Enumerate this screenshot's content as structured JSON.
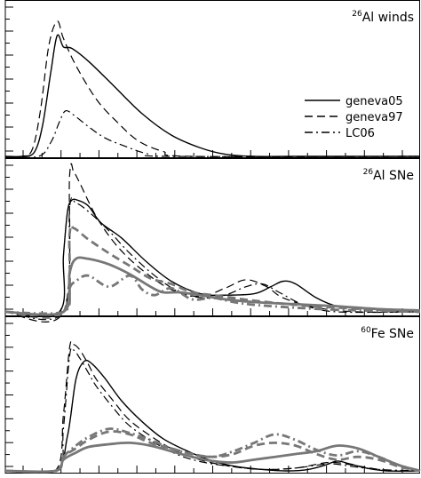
{
  "chart_data": [
    {
      "type": "line",
      "panel_label": {
        "superscript": "26",
        "text": "Al winds"
      },
      "legend": {
        "placement": "middle-right",
        "entries": [
          {
            "name": "geneva05",
            "dash": "solid"
          },
          {
            "name": "geneva97",
            "dash": "dashed"
          },
          {
            "name": "LC06",
            "dash": "dashdot"
          }
        ]
      },
      "xlim": [
        0,
        1
      ],
      "ylim": [
        0,
        1
      ],
      "grid": false,
      "series": [
        {
          "name": "geneva05",
          "color": "#000000",
          "width": 1.4,
          "dash": "solid",
          "x": [
            0.0,
            0.04,
            0.07,
            0.09,
            0.11,
            0.125,
            0.14,
            0.16,
            0.2,
            0.26,
            0.33,
            0.4,
            0.47,
            0.53,
            0.6,
            0.7,
            0.85,
            1.0
          ],
          "y": [
            0.0,
            0.0,
            0.03,
            0.22,
            0.6,
            0.85,
            0.77,
            0.76,
            0.67,
            0.5,
            0.3,
            0.15,
            0.06,
            0.015,
            0.0,
            0.0,
            0.0,
            0.0
          ]
        },
        {
          "name": "geneva97",
          "color": "#000000",
          "width": 1.2,
          "dash": "dashed",
          "x": [
            0.0,
            0.04,
            0.065,
            0.085,
            0.105,
            0.125,
            0.14,
            0.17,
            0.22,
            0.27,
            0.32,
            0.38,
            0.45,
            1.0
          ],
          "y": [
            0.0,
            0.0,
            0.05,
            0.33,
            0.78,
            0.95,
            0.83,
            0.64,
            0.4,
            0.24,
            0.11,
            0.035,
            0.0,
            0.0
          ]
        },
        {
          "name": "LC06",
          "color": "#000000",
          "width": 1.2,
          "dash": "dashdot",
          "x": [
            0.0,
            0.08,
            0.11,
            0.13,
            0.145,
            0.165,
            0.2,
            0.24,
            0.29,
            0.34,
            0.4,
            1.0
          ],
          "y": [
            0.0,
            0.0,
            0.1,
            0.24,
            0.32,
            0.29,
            0.21,
            0.13,
            0.07,
            0.02,
            0.0,
            0.0
          ]
        }
      ]
    },
    {
      "type": "line",
      "panel_label": {
        "superscript": "26",
        "text": "Al SNe"
      },
      "xlim": [
        0,
        1
      ],
      "ylim": [
        0,
        1
      ],
      "grid": false,
      "series": [
        {
          "name": "geneva05",
          "color": "#000000",
          "width": 1.4,
          "dash": "solid",
          "x": [
            0.0,
            0.13,
            0.14,
            0.15,
            0.16,
            0.175,
            0.2,
            0.23,
            0.28,
            0.34,
            0.4,
            0.47,
            0.53,
            0.6,
            0.64,
            0.67,
            0.7,
            0.75,
            0.8,
            0.85,
            0.9,
            1.0
          ],
          "y": [
            0.0,
            0.0,
            0.4,
            0.72,
            0.8,
            0.8,
            0.76,
            0.64,
            0.53,
            0.36,
            0.22,
            0.13,
            0.12,
            0.13,
            0.18,
            0.22,
            0.2,
            0.1,
            0.04,
            0.03,
            0.015,
            0.0
          ]
        },
        {
          "name": "geneva97",
          "color": "#000000",
          "width": 1.2,
          "dash": "dashed",
          "x": [
            0.0,
            0.14,
            0.155,
            0.165,
            0.18,
            0.22,
            0.27,
            0.33,
            0.4,
            0.47,
            0.53,
            0.58,
            0.63,
            0.67,
            0.75,
            0.85,
            1.0
          ],
          "y": [
            0.0,
            0.0,
            0.98,
            1.0,
            0.92,
            0.68,
            0.47,
            0.3,
            0.16,
            0.11,
            0.17,
            0.23,
            0.18,
            0.1,
            0.03,
            0.0,
            0.0
          ]
        },
        {
          "name": "LC06",
          "color": "#000000",
          "width": 1.2,
          "dash": "dashdot",
          "x": [
            0.0,
            0.14,
            0.155,
            0.17,
            0.2,
            0.25,
            0.3,
            0.36,
            0.42,
            0.48,
            0.53,
            0.58,
            0.62,
            0.66,
            0.72,
            0.8,
            1.0
          ],
          "y": [
            0.0,
            0.0,
            0.75,
            0.78,
            0.72,
            0.58,
            0.42,
            0.26,
            0.14,
            0.1,
            0.12,
            0.18,
            0.2,
            0.14,
            0.05,
            0.0,
            0.0
          ]
        },
        {
          "name": "geneva05",
          "color": "#777777",
          "width": 2.8,
          "dash": "solid",
          "x": [
            0.0,
            0.14,
            0.155,
            0.17,
            0.2,
            0.25,
            0.3,
            0.35,
            0.38,
            0.42,
            0.47,
            0.53,
            0.6,
            0.7,
            0.8,
            0.9,
            1.0
          ],
          "y": [
            0.0,
            0.0,
            0.28,
            0.38,
            0.38,
            0.34,
            0.27,
            0.18,
            0.14,
            0.14,
            0.12,
            0.09,
            0.07,
            0.055,
            0.04,
            0.02,
            0.01
          ]
        },
        {
          "name": "geneva97",
          "color": "#777777",
          "width": 2.8,
          "dash": "dashed",
          "x": [
            0.0,
            0.14,
            0.155,
            0.165,
            0.2,
            0.25,
            0.3,
            0.35,
            0.4,
            0.45,
            0.5,
            0.55,
            0.6,
            0.7,
            0.8,
            0.9,
            1.0
          ],
          "y": [
            0.0,
            0.0,
            0.56,
            0.6,
            0.52,
            0.42,
            0.33,
            0.24,
            0.2,
            0.14,
            0.12,
            0.1,
            0.08,
            0.05,
            0.03,
            0.015,
            0.0
          ]
        },
        {
          "name": "LC06",
          "color": "#777777",
          "width": 2.8,
          "dash": "dashdot",
          "x": [
            0.0,
            0.14,
            0.155,
            0.17,
            0.2,
            0.25,
            0.3,
            0.33,
            0.36,
            0.4,
            0.45,
            0.5,
            0.55,
            0.6,
            0.7,
            0.8,
            1.0
          ],
          "y": [
            0.0,
            0.0,
            0.17,
            0.22,
            0.26,
            0.18,
            0.26,
            0.16,
            0.12,
            0.17,
            0.09,
            0.1,
            0.07,
            0.05,
            0.03,
            0.015,
            0.0
          ]
        }
      ]
    },
    {
      "type": "line",
      "panel_label": {
        "superscript": "60",
        "text": "Fe SNe"
      },
      "xlim": [
        0,
        1
      ],
      "ylim": [
        0,
        1
      ],
      "grid": false,
      "series": [
        {
          "name": "geneva05",
          "color": "#000000",
          "width": 1.4,
          "dash": "solid",
          "x": [
            0.0,
            0.12,
            0.15,
            0.17,
            0.19,
            0.21,
            0.24,
            0.28,
            0.33,
            0.38,
            0.44,
            0.5,
            0.56,
            0.62,
            0.68,
            0.73,
            0.77,
            0.8,
            0.83,
            0.87,
            0.92,
            1.0
          ],
          "y": [
            0.0,
            0.0,
            0.25,
            0.65,
            0.78,
            0.76,
            0.66,
            0.5,
            0.35,
            0.23,
            0.14,
            0.07,
            0.03,
            0.01,
            0.0,
            0.01,
            0.04,
            0.07,
            0.05,
            0.02,
            0.0,
            0.0
          ]
        },
        {
          "name": "geneva97",
          "color": "#000000",
          "width": 1.2,
          "dash": "dashed",
          "x": [
            0.0,
            0.12,
            0.14,
            0.155,
            0.165,
            0.18,
            0.2,
            0.22,
            0.26,
            0.3,
            0.36,
            0.42,
            0.48,
            0.55,
            0.62,
            0.7,
            0.78,
            0.84,
            0.88,
            0.93,
            1.0
          ],
          "y": [
            0.0,
            0.0,
            0.4,
            0.88,
            0.9,
            0.86,
            0.76,
            0.65,
            0.5,
            0.36,
            0.23,
            0.13,
            0.07,
            0.03,
            0.01,
            0.02,
            0.06,
            0.04,
            0.02,
            0.0,
            0.0
          ]
        },
        {
          "name": "LC06",
          "color": "#000000",
          "width": 1.2,
          "dash": "dashdot",
          "x": [
            0.0,
            0.125,
            0.14,
            0.155,
            0.165,
            0.18,
            0.2,
            0.22,
            0.26,
            0.3,
            0.36,
            0.42,
            0.48,
            0.55,
            0.62,
            0.7,
            0.78,
            0.84,
            0.9,
            1.0
          ],
          "y": [
            0.0,
            0.0,
            0.3,
            0.82,
            0.86,
            0.8,
            0.7,
            0.6,
            0.45,
            0.32,
            0.2,
            0.11,
            0.06,
            0.03,
            0.01,
            0.02,
            0.05,
            0.03,
            0.01,
            0.0
          ]
        },
        {
          "name": "geneva05",
          "color": "#777777",
          "width": 2.8,
          "dash": "solid",
          "x": [
            0.0,
            0.12,
            0.14,
            0.17,
            0.2,
            0.25,
            0.3,
            0.35,
            0.4,
            0.45,
            0.5,
            0.55,
            0.6,
            0.65,
            0.7,
            0.75,
            0.8,
            0.85,
            0.9,
            0.95,
            1.0
          ],
          "y": [
            0.0,
            0.0,
            0.08,
            0.13,
            0.17,
            0.19,
            0.2,
            0.18,
            0.14,
            0.1,
            0.07,
            0.06,
            0.08,
            0.1,
            0.12,
            0.14,
            0.18,
            0.16,
            0.1,
            0.04,
            0.0
          ]
        },
        {
          "name": "geneva97",
          "color": "#777777",
          "width": 2.8,
          "dash": "dashed",
          "x": [
            0.0,
            0.12,
            0.14,
            0.17,
            0.2,
            0.25,
            0.3,
            0.35,
            0.4,
            0.45,
            0.5,
            0.55,
            0.6,
            0.65,
            0.7,
            0.75,
            0.8,
            0.85,
            0.9,
            0.95,
            1.0
          ],
          "y": [
            0.0,
            0.0,
            0.1,
            0.16,
            0.22,
            0.28,
            0.26,
            0.2,
            0.16,
            0.12,
            0.1,
            0.12,
            0.18,
            0.2,
            0.18,
            0.12,
            0.08,
            0.1,
            0.08,
            0.03,
            0.0
          ]
        },
        {
          "name": "LC06",
          "color": "#777777",
          "width": 2.8,
          "dash": "dashdot",
          "x": [
            0.0,
            0.12,
            0.14,
            0.17,
            0.2,
            0.25,
            0.3,
            0.35,
            0.4,
            0.45,
            0.5,
            0.55,
            0.6,
            0.65,
            0.7,
            0.75,
            0.8,
            0.85,
            0.9,
            0.95,
            1.0
          ],
          "y": [
            0.0,
            0.0,
            0.1,
            0.18,
            0.24,
            0.3,
            0.27,
            0.22,
            0.16,
            0.12,
            0.1,
            0.14,
            0.2,
            0.26,
            0.22,
            0.15,
            0.11,
            0.14,
            0.1,
            0.04,
            0.0
          ]
        }
      ]
    }
  ]
}
